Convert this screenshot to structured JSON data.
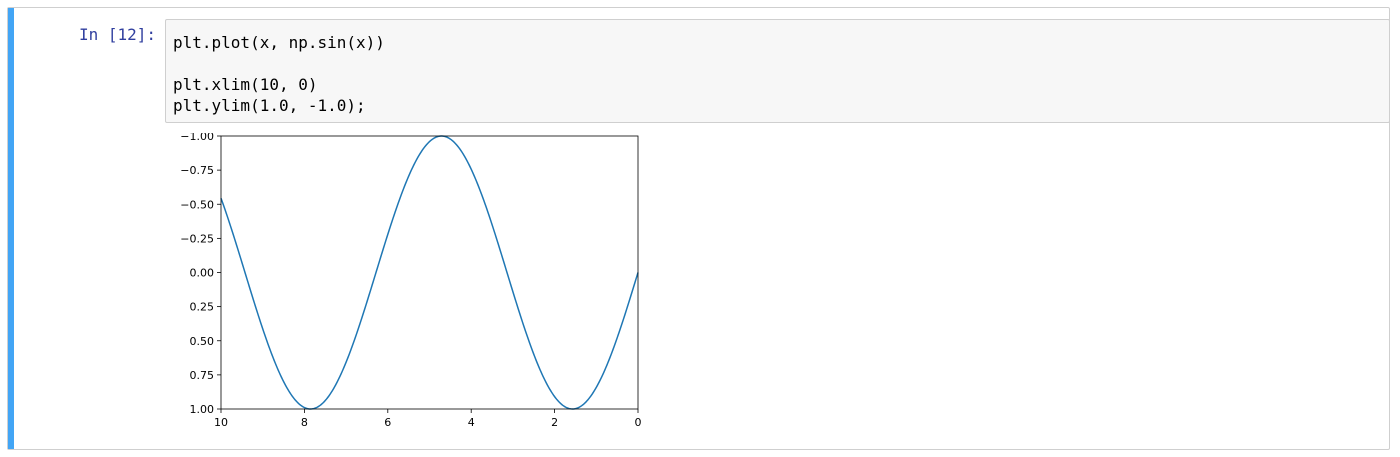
{
  "cell": {
    "prompt": "In [12]:",
    "code_lines": [
      "plt.plot(x, np.sin(x))",
      "",
      "plt.xlim(10, 0)",
      "plt.ylim(1.0, -1.0);"
    ]
  },
  "colors": {
    "accent_bar": "#42a5f5",
    "prompt": "#303f9f",
    "line": "#1f77b4"
  },
  "chart_data": {
    "type": "line",
    "title": "",
    "xlabel": "",
    "ylabel": "",
    "xlim": [
      10,
      0
    ],
    "ylim": [
      1.0,
      -1.0
    ],
    "x_ticks": [
      10,
      8,
      6,
      4,
      2,
      0
    ],
    "x_tick_labels": [
      "10",
      "8",
      "6",
      "4",
      "2",
      "0"
    ],
    "y_ticks": [
      -1.0,
      -0.75,
      -0.5,
      -0.25,
      0.0,
      0.25,
      0.5,
      0.75,
      1.0
    ],
    "y_tick_labels": [
      "−1.00",
      "−0.75",
      "−0.50",
      "−0.25",
      "0.00",
      "0.25",
      "0.50",
      "0.75",
      "1.00"
    ],
    "grid": false,
    "series": [
      {
        "function": "sin(x)",
        "x_range": [
          0,
          10
        ],
        "color": "#1f77b4"
      }
    ]
  }
}
